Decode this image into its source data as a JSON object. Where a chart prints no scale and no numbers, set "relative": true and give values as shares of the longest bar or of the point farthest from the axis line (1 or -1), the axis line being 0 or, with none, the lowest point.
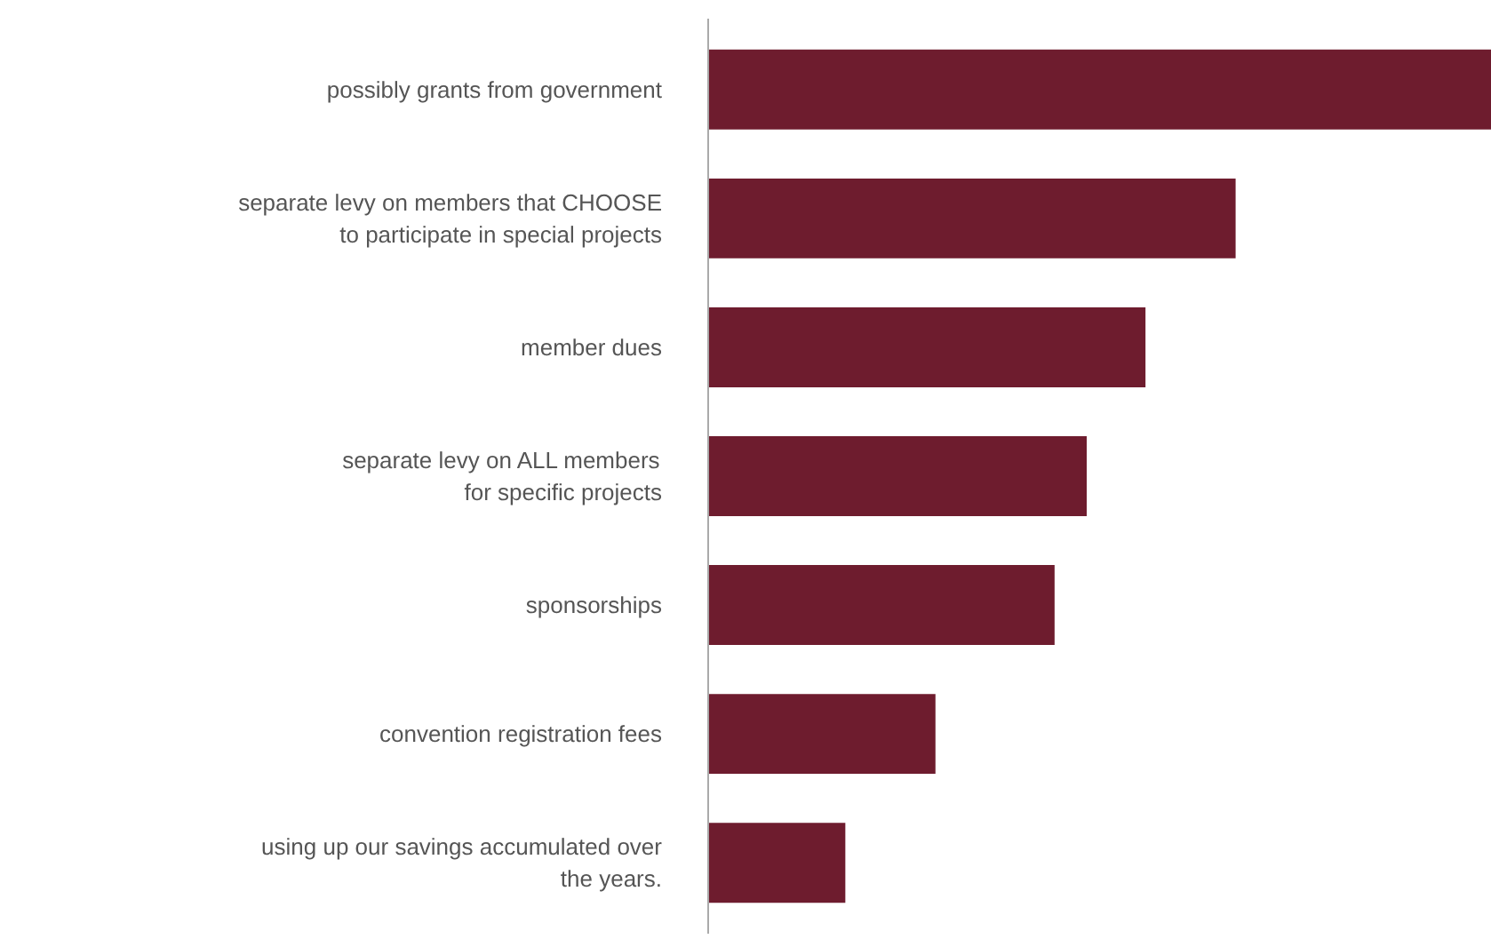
{
  "chart_data": {
    "type": "bar",
    "orientation": "horizontal",
    "relative": true,
    "color": "#6e1c2e",
    "categories": [
      "possibly grants from government",
      "separate levy on members that CHOOSE\nto participate in special projects",
      "member dues",
      "separate levy on ALL members\nfor specific projects",
      "sponsorships",
      "convention registration fees",
      "using up our savings accumulated over\nthe years."
    ],
    "values": [
      1,
      0.673,
      0.558,
      0.483,
      0.442,
      0.29,
      0.175
    ]
  }
}
